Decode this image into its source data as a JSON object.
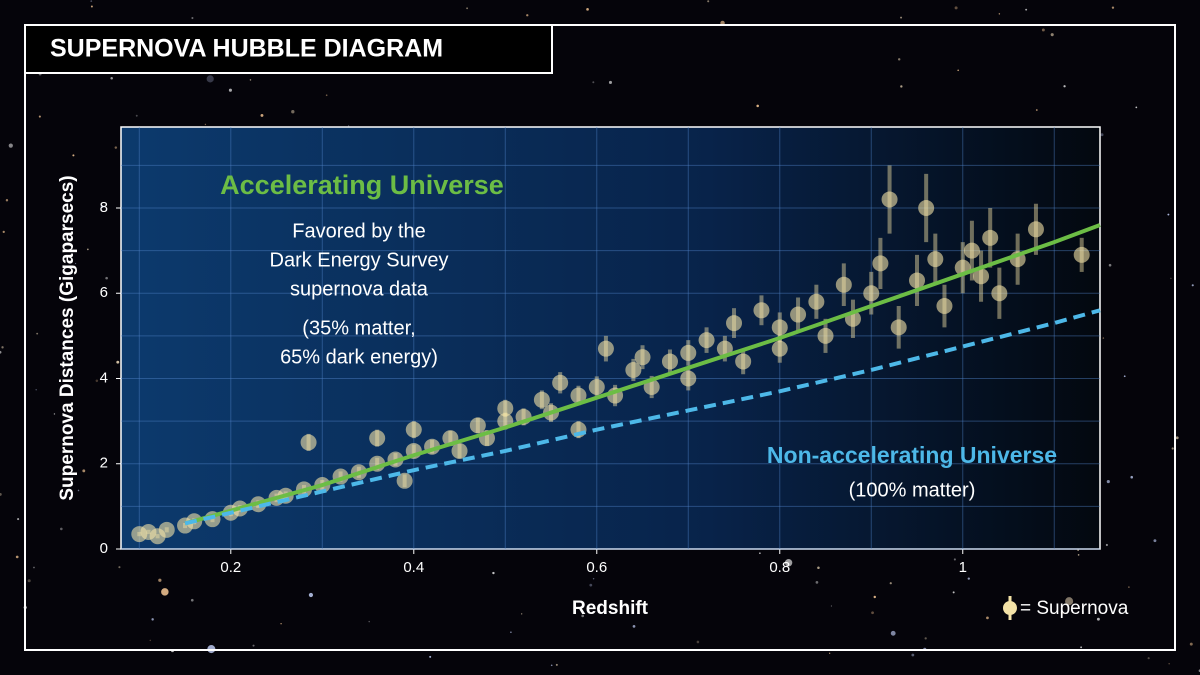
{
  "chart_data": {
    "type": "scatter",
    "title": "SUPERNOVA HUBBLE DIAGRAM",
    "x_label": "Redshift",
    "y_label": "Supernova Distances (Gigaparsecs)",
    "xlim": [
      0.08,
      1.15
    ],
    "ylim": [
      0,
      9.9
    ],
    "xticks": [
      0.2,
      0.4,
      0.6,
      0.8,
      1
    ],
    "yticks": [
      0,
      2,
      4,
      6,
      8
    ],
    "grid": true,
    "legend": "bottom-right",
    "annotations": {
      "accelerating_note": [
        "Favored by the",
        "Dark Energy Survey",
        "supernova data"
      ],
      "accelerating_mix": [
        "(35% matter,",
        "65% dark energy)"
      ],
      "nonaccelerating_mix": [
        "(100% matter)"
      ]
    },
    "series": [
      {
        "name": "= Supernova",
        "color": "#f3e2a6",
        "x": [
          0.1,
          0.11,
          0.12,
          0.13,
          0.15,
          0.16,
          0.18,
          0.2,
          0.21,
          0.23,
          0.25,
          0.26,
          0.28,
          0.285,
          0.3,
          0.32,
          0.34,
          0.36,
          0.36,
          0.38,
          0.39,
          0.4,
          0.4,
          0.42,
          0.44,
          0.45,
          0.47,
          0.48,
          0.5,
          0.5,
          0.52,
          0.54,
          0.55,
          0.56,
          0.58,
          0.58,
          0.6,
          0.61,
          0.62,
          0.64,
          0.65,
          0.66,
          0.68,
          0.7,
          0.7,
          0.72,
          0.74,
          0.75,
          0.76,
          0.78,
          0.8,
          0.8,
          0.82,
          0.84,
          0.85,
          0.87,
          0.88,
          0.9,
          0.91,
          0.92,
          0.93,
          0.95,
          0.96,
          0.97,
          0.98,
          1.0,
          1.01,
          1.02,
          1.03,
          1.04,
          1.06,
          1.08,
          1.13
        ],
        "values": [
          0.35,
          0.4,
          0.3,
          0.45,
          0.55,
          0.65,
          0.7,
          0.85,
          0.95,
          1.05,
          1.2,
          1.25,
          1.4,
          2.5,
          1.5,
          1.7,
          1.8,
          2.0,
          2.6,
          2.1,
          1.6,
          2.3,
          2.8,
          2.4,
          2.6,
          2.3,
          2.9,
          2.6,
          3.0,
          3.3,
          3.1,
          3.5,
          3.2,
          3.9,
          3.6,
          2.8,
          3.8,
          4.7,
          3.6,
          4.2,
          4.5,
          3.8,
          4.4,
          4.6,
          4.0,
          4.9,
          4.7,
          5.3,
          4.4,
          5.6,
          5.2,
          4.7,
          5.5,
          5.8,
          5.0,
          6.2,
          5.4,
          6.0,
          6.7,
          8.2,
          5.2,
          6.3,
          8.0,
          6.8,
          5.7,
          6.6,
          7.0,
          6.4,
          7.3,
          6.0,
          6.8,
          7.5,
          6.9
        ],
        "errors": [
          0.05,
          0.05,
          0.05,
          0.06,
          0.06,
          0.07,
          0.07,
          0.08,
          0.08,
          0.09,
          0.1,
          0.1,
          0.1,
          0.2,
          0.12,
          0.12,
          0.13,
          0.14,
          0.2,
          0.15,
          0.15,
          0.15,
          0.2,
          0.16,
          0.17,
          0.17,
          0.18,
          0.18,
          0.2,
          0.2,
          0.2,
          0.22,
          0.22,
          0.25,
          0.23,
          0.2,
          0.25,
          0.3,
          0.25,
          0.26,
          0.28,
          0.26,
          0.28,
          0.3,
          0.28,
          0.3,
          0.3,
          0.35,
          0.3,
          0.35,
          0.35,
          0.33,
          0.4,
          0.4,
          0.4,
          0.5,
          0.45,
          0.5,
          0.6,
          0.8,
          0.5,
          0.6,
          0.8,
          0.6,
          0.5,
          0.6,
          0.7,
          0.6,
          0.7,
          0.6,
          0.6,
          0.6,
          0.4
        ]
      },
      {
        "name": "Accelerating Universe",
        "type": "line",
        "color": "#6cbd45",
        "x": [
          0.15,
          0.2,
          0.3,
          0.4,
          0.5,
          0.6,
          0.7,
          0.8,
          0.9,
          1.0,
          1.1,
          1.15
        ],
        "values": [
          0.6,
          0.9,
          1.5,
          2.2,
          2.85,
          3.55,
          4.25,
          4.95,
          5.7,
          6.45,
          7.2,
          7.6
        ]
      },
      {
        "name": "Non-accelerating Universe",
        "type": "line",
        "dashed": true,
        "color": "#4db8e8",
        "x": [
          0.15,
          0.2,
          0.3,
          0.4,
          0.5,
          0.6,
          0.7,
          0.8,
          0.9,
          1.0,
          1.1,
          1.15
        ],
        "values": [
          0.6,
          0.85,
          1.35,
          1.85,
          2.3,
          2.8,
          3.25,
          3.7,
          4.2,
          4.75,
          5.3,
          5.6
        ]
      }
    ]
  }
}
